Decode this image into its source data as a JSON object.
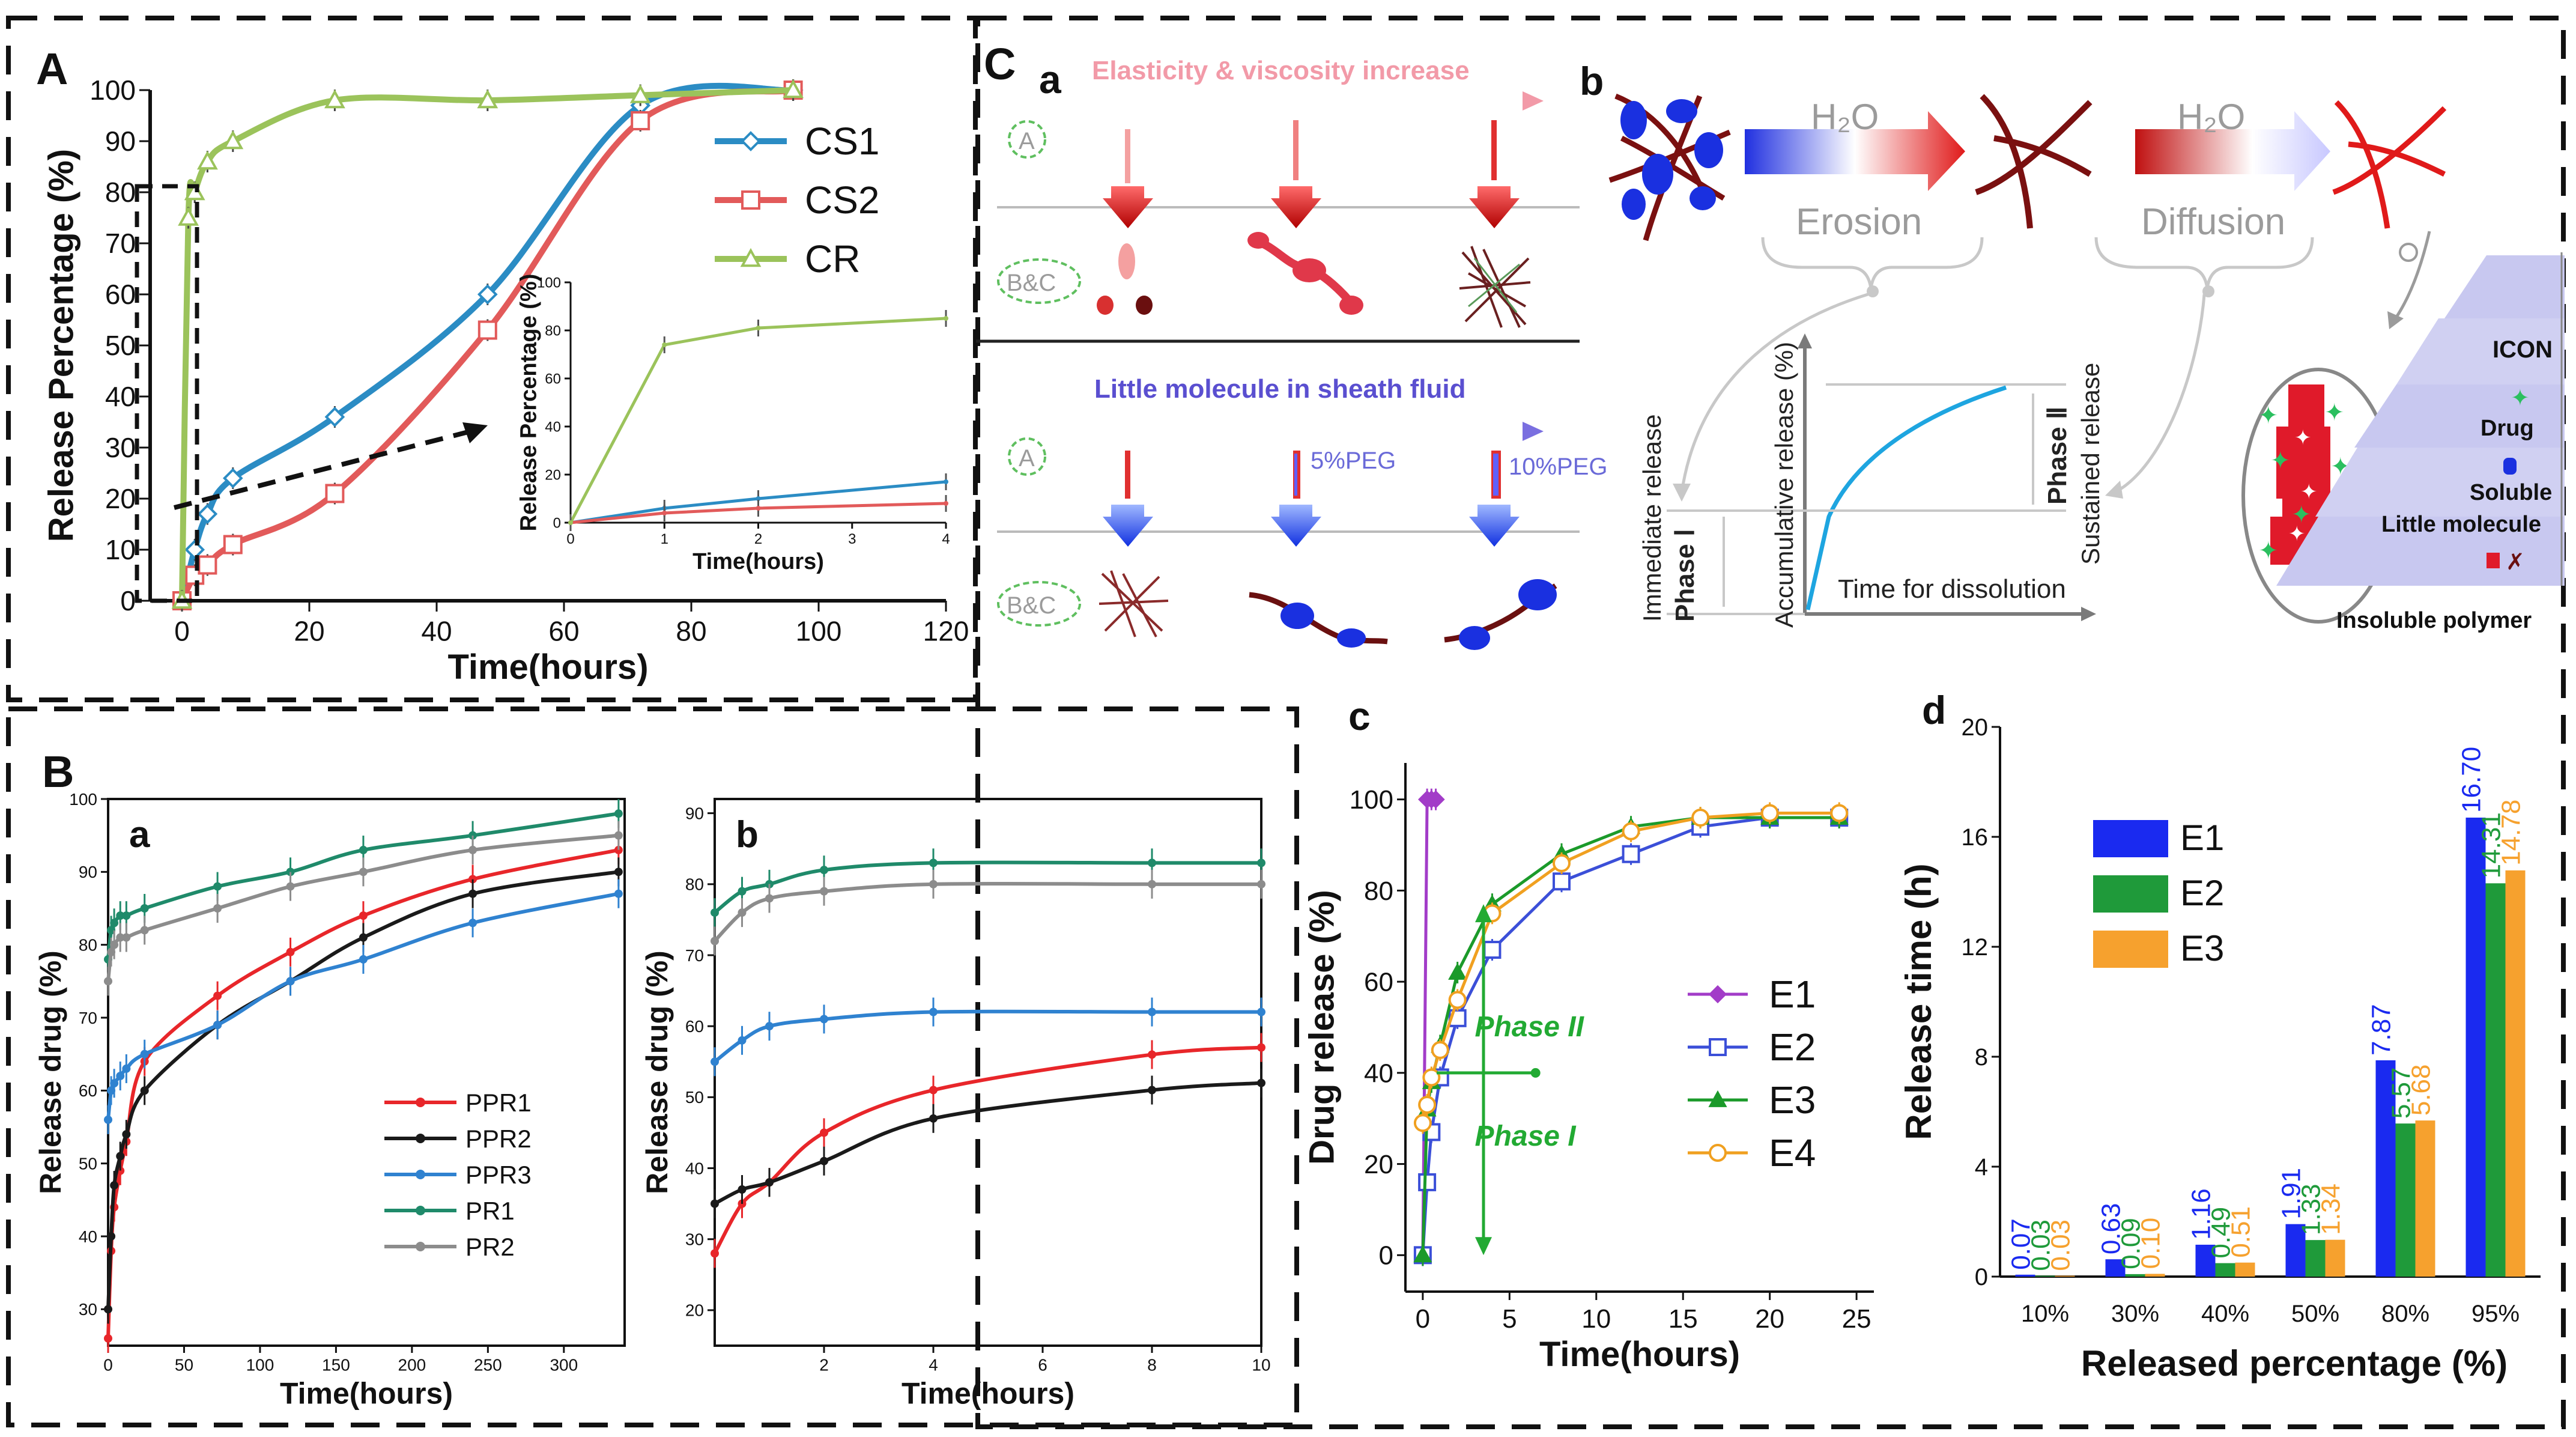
{
  "panel_labels": {
    "A": "A",
    "B": "B",
    "C": "C"
  },
  "sub_labels": {
    "Ca": "a",
    "Cb": "b",
    "Cc": "c",
    "Cd": "d",
    "Ba": "a",
    "Bb": "b"
  },
  "chart_data": [
    {
      "id": "A_main",
      "type": "line",
      "title": "",
      "xlabel": "Time(hours)",
      "ylabel": "Release Percentage (%)",
      "xlim": [
        -5,
        120
      ],
      "ylim": [
        0,
        100
      ],
      "xticks": [
        0,
        20,
        40,
        60,
        80,
        100,
        120
      ],
      "yticks": [
        0,
        10,
        20,
        30,
        40,
        50,
        60,
        70,
        80,
        90,
        100
      ],
      "colors": {
        "CS1": "#2b8cc4",
        "CS2": "#e25a5a",
        "CR": "#9bc35b"
      },
      "series": [
        {
          "name": "CS1",
          "x": [
            0,
            2,
            4,
            8,
            24,
            48,
            72,
            96
          ],
          "y": [
            0,
            10,
            17,
            24,
            36,
            60,
            97,
            100
          ]
        },
        {
          "name": "CS2",
          "x": [
            0,
            2,
            4,
            8,
            24,
            48,
            72,
            96
          ],
          "y": [
            0,
            5,
            7,
            11,
            21,
            53,
            94,
            100
          ]
        },
        {
          "name": "CR",
          "x": [
            0,
            1,
            2,
            4,
            8,
            24,
            48,
            72,
            96
          ],
          "y": [
            0,
            75,
            80,
            86,
            90,
            98,
            98,
            99,
            100
          ]
        }
      ]
    },
    {
      "id": "A_inset",
      "type": "line",
      "title": "",
      "xlabel": "Time(hours)",
      "ylabel": "Release Percentage (%)",
      "xlim": [
        0,
        4
      ],
      "ylim": [
        0,
        100
      ],
      "xticks": [
        0,
        1,
        2,
        3,
        4
      ],
      "yticks": [
        0,
        20,
        40,
        60,
        80,
        100
      ],
      "series": [
        {
          "name": "CS1",
          "x": [
            0,
            1,
            2,
            4
          ],
          "y": [
            0,
            6,
            10,
            17
          ]
        },
        {
          "name": "CS2",
          "x": [
            0,
            1,
            2,
            4
          ],
          "y": [
            0,
            4,
            6,
            8
          ]
        },
        {
          "name": "CR",
          "x": [
            0,
            1,
            2,
            4
          ],
          "y": [
            0,
            74,
            81,
            85
          ]
        }
      ]
    },
    {
      "id": "B_a",
      "type": "line",
      "xlabel": "Time(hours)",
      "ylabel": "Release drug (%)",
      "xlim": [
        0,
        340
      ],
      "ylim": [
        25,
        100
      ],
      "xticks": [
        0,
        50,
        100,
        150,
        200,
        250,
        300
      ],
      "yticks": [
        30,
        40,
        50,
        60,
        70,
        80,
        90,
        100
      ],
      "colors": {
        "PPR1": "#e8262a",
        "PPR2": "#1a1a1a",
        "PPR3": "#2f82d0",
        "PR1": "#1f8a6a",
        "PR2": "#8c8c8c"
      },
      "series": [
        {
          "name": "PPR1",
          "x": [
            0,
            2,
            4,
            8,
            12,
            24,
            72,
            120,
            168,
            240,
            336
          ],
          "y": [
            26,
            38,
            44,
            49,
            53,
            64,
            73,
            79,
            84,
            89,
            93
          ]
        },
        {
          "name": "PPR2",
          "x": [
            0,
            2,
            4,
            8,
            12,
            24,
            72,
            120,
            168,
            240,
            336
          ],
          "y": [
            30,
            40,
            47,
            51,
            54,
            60,
            69,
            75,
            81,
            87,
            90
          ]
        },
        {
          "name": "PPR3",
          "x": [
            0,
            2,
            4,
            8,
            12,
            24,
            72,
            120,
            168,
            240,
            336
          ],
          "y": [
            56,
            60,
            61,
            62,
            63,
            65,
            69,
            75,
            78,
            83,
            87
          ]
        },
        {
          "name": "PR1",
          "x": [
            0,
            2,
            4,
            8,
            12,
            24,
            72,
            120,
            168,
            240,
            336
          ],
          "y": [
            78,
            82,
            83,
            84,
            84,
            85,
            88,
            90,
            93,
            95,
            98
          ]
        },
        {
          "name": "PR2",
          "x": [
            0,
            2,
            4,
            8,
            12,
            24,
            72,
            120,
            168,
            240,
            336
          ],
          "y": [
            75,
            79,
            80,
            81,
            81,
            82,
            85,
            88,
            90,
            93,
            95
          ]
        }
      ]
    },
    {
      "id": "B_b",
      "type": "line",
      "xlabel": "Time(hours)",
      "ylabel": "Release drug (%)",
      "xlim": [
        0,
        10
      ],
      "ylim": [
        15,
        92
      ],
      "xticks": [
        2,
        4,
        6,
        8,
        10
      ],
      "yticks": [
        20,
        30,
        40,
        50,
        60,
        70,
        80,
        90
      ],
      "series": [
        {
          "name": "PPR1",
          "x": [
            0,
            0.5,
            1,
            2,
            4,
            8,
            10
          ],
          "y": [
            28,
            35,
            38,
            45,
            51,
            56,
            57
          ]
        },
        {
          "name": "PPR2",
          "x": [
            0,
            0.5,
            1,
            2,
            4,
            8,
            10
          ],
          "y": [
            35,
            37,
            38,
            41,
            47,
            51,
            52
          ]
        },
        {
          "name": "PPR3",
          "x": [
            0,
            0.5,
            1,
            2,
            4,
            8,
            10
          ],
          "y": [
            55,
            58,
            60,
            61,
            62,
            62,
            62
          ]
        },
        {
          "name": "PR1",
          "x": [
            0,
            0.5,
            1,
            2,
            4,
            8,
            10
          ],
          "y": [
            76,
            79,
            80,
            82,
            83,
            83,
            83
          ]
        },
        {
          "name": "PR2",
          "x": [
            0,
            0.5,
            1,
            2,
            4,
            8,
            10
          ],
          "y": [
            72,
            76,
            78,
            79,
            80,
            80,
            80
          ]
        }
      ]
    },
    {
      "id": "C_c",
      "type": "line",
      "xlabel": "Time(hours)",
      "ylabel": "Drug release (%)",
      "xlim": [
        -1,
        26
      ],
      "ylim": [
        -8,
        108
      ],
      "xticks": [
        0,
        5,
        10,
        15,
        20,
        25
      ],
      "yticks": [
        0,
        20,
        40,
        60,
        80,
        100
      ],
      "colors": {
        "E1": "#a23cc8",
        "E2": "#3b4fd8",
        "E3": "#1b9a2a",
        "E4": "#f0a020"
      },
      "annotations": [
        "Phase II",
        "Phase I"
      ],
      "series": [
        {
          "name": "E1",
          "x": [
            0,
            0.25,
            0.5,
            0.75
          ],
          "y": [
            0,
            100,
            100,
            100
          ]
        },
        {
          "name": "E2",
          "x": [
            0,
            0.25,
            0.5,
            1,
            2,
            4,
            8,
            12,
            16,
            20,
            24
          ],
          "y": [
            0,
            16,
            27,
            39,
            52,
            67,
            82,
            88,
            94,
            96,
            96
          ]
        },
        {
          "name": "E3",
          "x": [
            0,
            0.25,
            0.5,
            1,
            2,
            4,
            8,
            12,
            16,
            20,
            24
          ],
          "y": [
            0,
            32,
            38,
            46,
            62,
            77,
            88,
            94,
            96,
            96,
            96
          ]
        },
        {
          "name": "E4",
          "x": [
            0,
            0.25,
            0.5,
            1,
            2,
            4,
            8,
            12,
            16,
            20,
            24
          ],
          "y": [
            29,
            33,
            39,
            45,
            56,
            75,
            86,
            93,
            96,
            97,
            97
          ]
        }
      ]
    },
    {
      "id": "C_d",
      "type": "bar",
      "xlabel": "Released percentage (%)",
      "ylabel": "Release time (h)",
      "ylim": [
        0,
        20
      ],
      "yticks": [
        0,
        4,
        8,
        12,
        16,
        20
      ],
      "categories": [
        "10%",
        "30%",
        "40%",
        "50%",
        "80%",
        "95%"
      ],
      "colors": {
        "E1": "#1a2af0",
        "E2": "#1f9a3a",
        "E3": "#f6a12e"
      },
      "series": [
        {
          "name": "E1",
          "values": [
            0.07,
            0.63,
            1.16,
            1.91,
            7.87,
            16.7
          ],
          "labels": [
            "0.07",
            "0.63",
            "1.16",
            "1.91",
            "7.87",
            "16.70"
          ]
        },
        {
          "name": "E2",
          "values": [
            0.03,
            0.09,
            0.49,
            1.33,
            5.57,
            14.31
          ],
          "labels": [
            "0.03",
            "0.09",
            "0.49",
            "1.33",
            "5.57",
            "14.31"
          ]
        },
        {
          "name": "E3",
          "values": [
            0.03,
            0.1,
            0.51,
            1.34,
            5.68,
            14.78
          ],
          "labels": [
            "0.03",
            "0.10",
            "0.51",
            "1.34",
            "5.68",
            "14.78"
          ]
        }
      ]
    }
  ],
  "diagram_a": {
    "top_arrow": "Elasticity & viscosity increase",
    "bottom_arrow": "Little molecule in sheath fluid",
    "label_A": "A",
    "label_BC": "B&C",
    "peg5": "5%PEG",
    "peg10": "10%PEG"
  },
  "diagram_b": {
    "h2o_1": "H₂O",
    "erosion": "Erosion",
    "h2o_2": "H₂O",
    "diffusion": "Diffusion",
    "immediate": "Immediate release",
    "phase1": "Phase Ⅰ",
    "accum": "Accumulative release (%)",
    "time_diss": "Time for dissolution",
    "phase2": "Phase Ⅱ",
    "sustained": "Sustained release",
    "legend": [
      "ICON",
      "Drug",
      "Soluble",
      "Little molecule",
      "Insoluble polymer"
    ]
  }
}
